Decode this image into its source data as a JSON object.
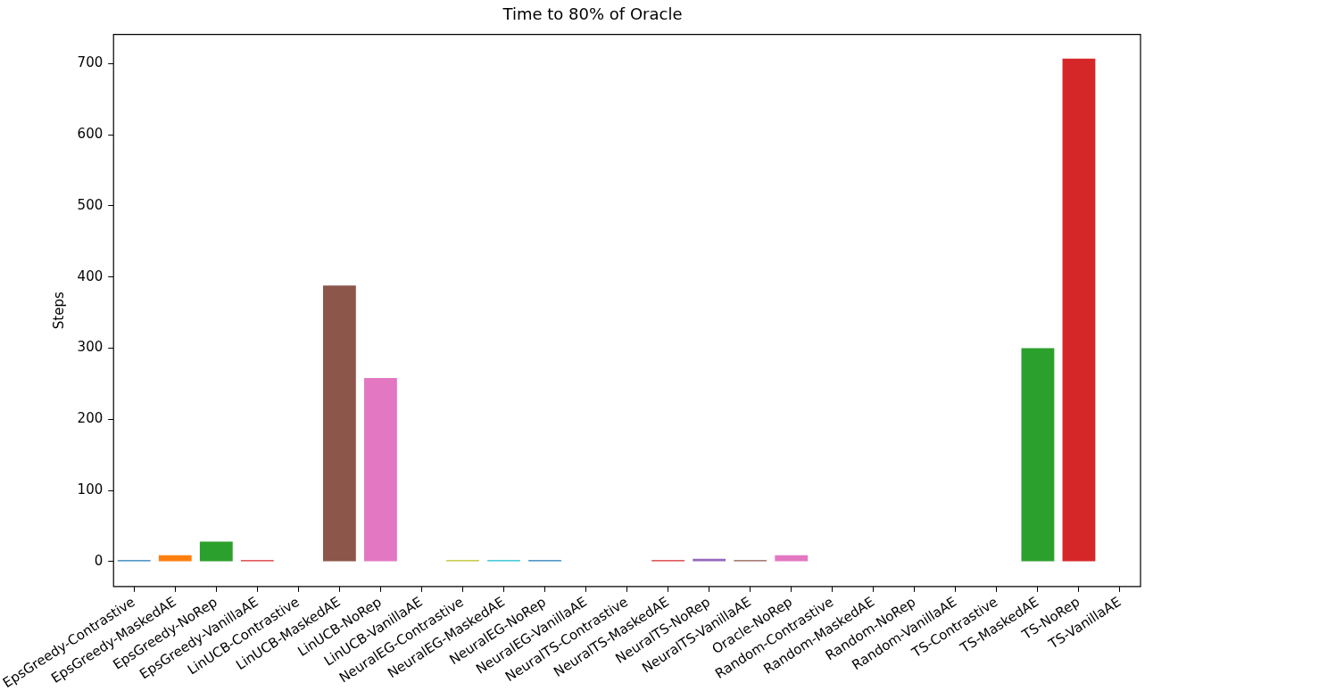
{
  "chart_data": {
    "type": "bar",
    "title": "Time to 80% of Oracle",
    "ylabel": "Steps",
    "categories": [
      "EpsGreedy-Contrastive",
      "EpsGreedy-MaskedAE",
      "EpsGreedy-NoRep",
      "EpsGreedy-VanillaAE",
      "LinUCB-Contrastive",
      "LinUCB-MaskedAE",
      "LinUCB-NoRep",
      "LinUCB-VanillaAE",
      "NeuralEG-Contrastive",
      "NeuralEG-MaskedAE",
      "NeuralEG-NoRep",
      "NeuralEG-VanillaAE",
      "NeuralTS-Contrastive",
      "NeuralTS-MaskedAE",
      "NeuralTS-NoRep",
      "NeuralTS-VanillaAE",
      "Oracle-NoRep",
      "Random-Contrastive",
      "Random-MaskedAE",
      "Random-NoRep",
      "Random-VanillaAE",
      "TS-Contrastive",
      "TS-MaskedAE",
      "TS-NoRep",
      "TS-VanillaAE"
    ],
    "values": [
      2,
      9,
      28,
      2,
      null,
      388,
      258,
      null,
      2,
      2,
      2,
      null,
      null,
      2,
      4,
      2,
      9,
      null,
      null,
      null,
      null,
      null,
      300,
      707,
      null
    ],
    "colors": [
      "#1f77b4",
      "#ff7f0e",
      "#2ca02c",
      "#d62728",
      "#9467bd",
      "#8c564b",
      "#e377c2",
      "#7f7f7f",
      "#bcbd22",
      "#17becf",
      "#1f77b4",
      "#ff7f0e",
      "#2ca02c",
      "#d62728",
      "#9467bd",
      "#8c564b",
      "#e377c2",
      "#7f7f7f",
      "#bcbd22",
      "#17becf",
      "#1f77b4",
      "#ff7f0e",
      "#2ca02c",
      "#d62728",
      "#9467bd"
    ],
    "ylim": [
      -35,
      741
    ],
    "yticks": [
      0,
      100,
      200,
      300,
      400,
      500,
      600,
      700
    ],
    "grid": false,
    "legend": false
  }
}
